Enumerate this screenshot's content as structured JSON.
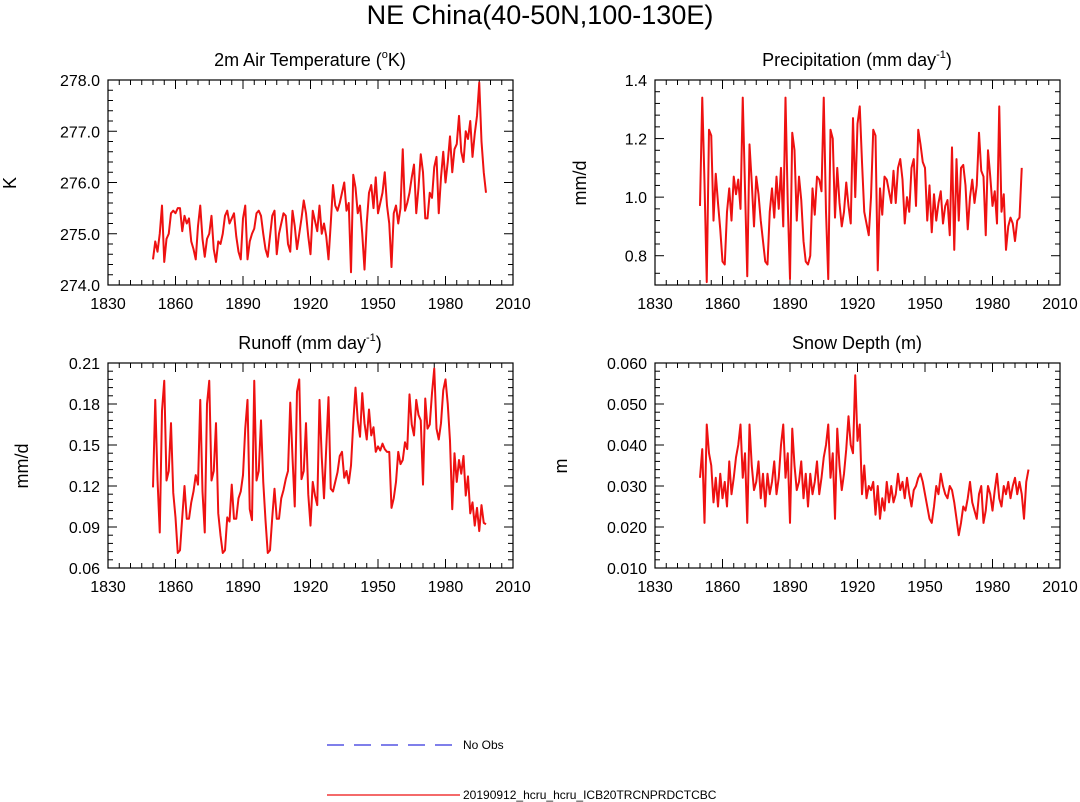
{
  "figure": {
    "title": "NE China(40-50N,100-130E)",
    "legend": [
      {
        "label": "No Obs",
        "color": "#3333dd",
        "style": "dashed"
      },
      {
        "label": "20190912_hcru_hcru_ICB20TRCNPRDCTCBC",
        "color": "#ee1111",
        "style": "solid"
      }
    ]
  },
  "chart_data": [
    {
      "type": "line",
      "title_prefix": "2m Air Temperature (",
      "title_sup": "o",
      "title_suffix": "K)",
      "ylabel": "K",
      "xlim": [
        1830,
        2010
      ],
      "ylim": [
        274.0,
        278.0
      ],
      "xticks": [
        1830,
        1860,
        1890,
        1920,
        1950,
        1980,
        2010
      ],
      "xtick_labels": [
        "1830",
        "1860",
        "1890",
        "1920",
        "1950",
        "1980",
        "2010"
      ],
      "yticks": [
        274.0,
        275.0,
        276.0,
        277.0,
        278.0
      ],
      "ytick_labels": [
        "274.0",
        "275.0",
        "276.0",
        "277.0",
        "278.0"
      ],
      "series": [
        {
          "name": "20190912_hcru_hcru_ICB20TRCNPRDCTCBC",
          "color": "#ee1111",
          "x_start": 1850,
          "values": [
            274.5,
            274.85,
            274.65,
            275.0,
            275.55,
            274.45,
            274.9,
            275.0,
            275.4,
            275.45,
            275.4,
            275.5,
            275.5,
            275.05,
            275.35,
            275.2,
            275.3,
            274.85,
            274.7,
            274.5,
            275.15,
            275.55,
            274.9,
            274.55,
            274.9,
            275.0,
            275.35,
            274.7,
            274.45,
            274.85,
            274.8,
            275.0,
            275.35,
            275.45,
            275.2,
            275.3,
            275.4,
            274.95,
            274.65,
            274.5,
            275.3,
            275.55,
            274.5,
            274.85,
            275.0,
            275.1,
            275.4,
            275.45,
            275.35,
            275.0,
            274.7,
            274.55,
            274.95,
            275.35,
            275.45,
            274.6,
            275.0,
            275.2,
            275.4,
            275.35,
            274.8,
            274.65,
            275.45,
            275.15,
            274.7,
            275.0,
            275.3,
            275.65,
            275.4,
            274.95,
            274.6,
            275.45,
            275.25,
            275.05,
            275.55,
            275.0,
            275.2,
            274.95,
            274.5,
            275.2,
            275.95,
            275.55,
            275.45,
            275.6,
            275.8,
            276.0,
            275.45,
            275.6,
            274.25,
            276.15,
            275.9,
            275.4,
            275.55,
            275.0,
            274.3,
            275.2,
            275.8,
            275.95,
            275.5,
            276.1,
            275.4,
            275.6,
            275.8,
            276.2,
            275.55,
            275.2,
            274.35,
            275.4,
            275.55,
            275.2,
            275.5,
            276.65,
            275.45,
            275.6,
            275.8,
            276.1,
            276.35,
            275.4,
            275.9,
            276.55,
            276.2,
            275.3,
            275.3,
            275.8,
            275.7,
            276.3,
            276.5,
            275.4,
            276.1,
            276.6,
            276.0,
            276.4,
            276.9,
            276.2,
            276.65,
            276.75,
            277.3,
            276.6,
            276.4,
            277.0,
            276.85,
            277.2,
            276.5,
            276.95,
            277.3,
            277.95,
            276.8,
            276.2,
            275.8
          ]
        }
      ]
    },
    {
      "type": "line",
      "title_prefix": "Precipitation (mm day",
      "title_sup": "-1",
      "title_suffix": ")",
      "ylabel": "mm/d",
      "xlim": [
        1830,
        2010
      ],
      "ylim": [
        0.7,
        1.4
      ],
      "xticks": [
        1830,
        1860,
        1890,
        1920,
        1950,
        1980,
        2010
      ],
      "xtick_labels": [
        "1830",
        "1860",
        "1890",
        "1920",
        "1950",
        "1980",
        "2010"
      ],
      "yticks": [
        0.8,
        1.0,
        1.2,
        1.4
      ],
      "ytick_labels": [
        "0.8",
        "1.0",
        "1.2",
        "1.4"
      ],
      "series": [
        {
          "name": "20190912_hcru_hcru_ICB20TRCNPRDCTCBC",
          "color": "#ee1111",
          "x_start": 1850,
          "values": [
            0.97,
            1.34,
            1.05,
            0.71,
            1.23,
            1.21,
            0.92,
            1.08,
            0.98,
            0.89,
            0.78,
            0.77,
            0.95,
            1.03,
            0.92,
            1.07,
            1.01,
            1.06,
            0.96,
            1.34,
            1.03,
            0.73,
            1.18,
            1.05,
            0.9,
            1.07,
            1.01,
            0.92,
            0.85,
            0.78,
            0.77,
            0.95,
            1.03,
            0.93,
            1.07,
            0.96,
            1.1,
            0.9,
            1.34,
            0.98,
            0.72,
            1.22,
            1.16,
            0.92,
            1.07,
            0.99,
            0.85,
            0.78,
            0.77,
            0.8,
            1.03,
            0.94,
            1.07,
            1.06,
            1.02,
            1.34,
            0.95,
            0.72,
            1.23,
            1.2,
            0.93,
            1.1,
            0.98,
            0.9,
            0.95,
            1.05,
            0.97,
            0.91,
            1.27,
            1.0,
            1.25,
            1.31,
            1.12,
            0.95,
            0.91,
            0.87,
            1.0,
            1.23,
            1.21,
            0.75,
            1.03,
            0.94,
            1.07,
            1.06,
            1.02,
            0.98,
            1.09,
            0.98,
            1.1,
            1.13,
            1.06,
            0.91,
            1.0,
            0.95,
            1.1,
            1.13,
            0.97,
            1.23,
            1.18,
            1.12,
            1.1,
            0.92,
            1.04,
            0.88,
            1.01,
            0.92,
            0.98,
            1.02,
            0.91,
            0.97,
            0.99,
            0.87,
            1.17,
            0.82,
            1.13,
            0.92,
            1.1,
            1.11,
            1.04,
            0.89,
            1.0,
            1.06,
            0.98,
            1.04,
            1.22,
            1.09,
            1.07,
            0.87,
            1.16,
            1.07,
            0.97,
            1.02,
            0.91,
            1.31,
            0.95,
            1.01,
            0.82,
            0.9,
            0.93,
            0.91,
            0.85,
            0.92,
            0.93,
            1.1
          ]
        }
      ]
    },
    {
      "type": "line",
      "title_prefix": "Runoff (mm day",
      "title_sup": "-1",
      "title_suffix": ")",
      "ylabel": "mm/d",
      "xlim": [
        1830,
        2010
      ],
      "ylim": [
        0.06,
        0.21
      ],
      "xticks": [
        1830,
        1860,
        1890,
        1920,
        1950,
        1980,
        2010
      ],
      "xtick_labels": [
        "1830",
        "1860",
        "1890",
        "1920",
        "1950",
        "1980",
        "2010"
      ],
      "yticks": [
        0.06,
        0.09,
        0.12,
        0.15,
        0.18,
        0.21
      ],
      "ytick_labels": [
        "0.06",
        "0.09",
        "0.12",
        "0.15",
        "0.18",
        "0.21"
      ],
      "series": [
        {
          "name": "20190912_hcru_hcru_ICB20TRCNPRDCTCBC",
          "color": "#ee1111",
          "x_start": 1850,
          "values": [
            0.119,
            0.183,
            0.125,
            0.086,
            0.175,
            0.197,
            0.124,
            0.131,
            0.166,
            0.115,
            0.097,
            0.071,
            0.073,
            0.097,
            0.12,
            0.096,
            0.096,
            0.108,
            0.116,
            0.128,
            0.121,
            0.183,
            0.116,
            0.086,
            0.18,
            0.197,
            0.124,
            0.131,
            0.166,
            0.1,
            0.084,
            0.071,
            0.073,
            0.097,
            0.094,
            0.121,
            0.096,
            0.096,
            0.111,
            0.116,
            0.128,
            0.162,
            0.183,
            0.103,
            0.095,
            0.197,
            0.124,
            0.131,
            0.168,
            0.123,
            0.095,
            0.071,
            0.073,
            0.097,
            0.118,
            0.096,
            0.096,
            0.111,
            0.117,
            0.125,
            0.131,
            0.181,
            0.141,
            0.105,
            0.189,
            0.198,
            0.125,
            0.131,
            0.166,
            0.114,
            0.091,
            0.123,
            0.113,
            0.106,
            0.183,
            0.141,
            0.111,
            0.148,
            0.185,
            0.118,
            0.116,
            0.123,
            0.13,
            0.142,
            0.145,
            0.126,
            0.131,
            0.122,
            0.135,
            0.166,
            0.192,
            0.168,
            0.156,
            0.188,
            0.166,
            0.154,
            0.176,
            0.157,
            0.163,
            0.145,
            0.149,
            0.146,
            0.151,
            0.147,
            0.145,
            0.145,
            0.104,
            0.111,
            0.123,
            0.145,
            0.136,
            0.139,
            0.152,
            0.147,
            0.187,
            0.165,
            0.157,
            0.183,
            0.172,
            0.168,
            0.121,
            0.184,
            0.162,
            0.165,
            0.188,
            0.206,
            0.162,
            0.154,
            0.166,
            0.19,
            0.198,
            0.18,
            0.153,
            0.103,
            0.144,
            0.123,
            0.139,
            0.129,
            0.142,
            0.113,
            0.127,
            0.1,
            0.108,
            0.091,
            0.104,
            0.087,
            0.106,
            0.093,
            0.092
          ]
        }
      ]
    },
    {
      "type": "line",
      "title_prefix": "Snow Depth (m)",
      "title_sup": "",
      "title_suffix": "",
      "ylabel": "m",
      "xlim": [
        1830,
        2010
      ],
      "ylim": [
        0.01,
        0.06
      ],
      "xticks": [
        1830,
        1860,
        1890,
        1920,
        1950,
        1980,
        2010
      ],
      "xtick_labels": [
        "1830",
        "1860",
        "1890",
        "1920",
        "1950",
        "1980",
        "2010"
      ],
      "yticks": [
        0.01,
        0.02,
        0.03,
        0.04,
        0.05,
        0.06
      ],
      "ytick_labels": [
        "0.010",
        "0.020",
        "0.030",
        "0.040",
        "0.050",
        "0.060"
      ],
      "series": [
        {
          "name": "20190912_hcru_hcru_ICB20TRCNPRDCTCBC",
          "color": "#ee1111",
          "x_start": 1850,
          "values": [
            0.032,
            0.039,
            0.021,
            0.045,
            0.038,
            0.035,
            0.026,
            0.032,
            0.025,
            0.033,
            0.027,
            0.031,
            0.025,
            0.036,
            0.028,
            0.032,
            0.037,
            0.04,
            0.045,
            0.032,
            0.038,
            0.021,
            0.045,
            0.035,
            0.029,
            0.031,
            0.036,
            0.027,
            0.033,
            0.025,
            0.033,
            0.028,
            0.031,
            0.036,
            0.028,
            0.032,
            0.04,
            0.045,
            0.032,
            0.038,
            0.021,
            0.044,
            0.035,
            0.029,
            0.031,
            0.036,
            0.027,
            0.033,
            0.025,
            0.033,
            0.028,
            0.031,
            0.036,
            0.028,
            0.032,
            0.037,
            0.04,
            0.045,
            0.032,
            0.038,
            0.022,
            0.044,
            0.035,
            0.029,
            0.033,
            0.039,
            0.047,
            0.04,
            0.038,
            0.057,
            0.041,
            0.045,
            0.028,
            0.035,
            0.027,
            0.03,
            0.029,
            0.031,
            0.023,
            0.03,
            0.022,
            0.027,
            0.024,
            0.031,
            0.026,
            0.03,
            0.026,
            0.028,
            0.033,
            0.029,
            0.031,
            0.027,
            0.032,
            0.028,
            0.025,
            0.029,
            0.03,
            0.032,
            0.033,
            0.031,
            0.028,
            0.025,
            0.022,
            0.021,
            0.025,
            0.03,
            0.028,
            0.033,
            0.03,
            0.028,
            0.027,
            0.03,
            0.029,
            0.026,
            0.022,
            0.018,
            0.021,
            0.025,
            0.024,
            0.027,
            0.031,
            0.026,
            0.024,
            0.022,
            0.028,
            0.03,
            0.021,
            0.024,
            0.03,
            0.028,
            0.024,
            0.029,
            0.033,
            0.027,
            0.025,
            0.03,
            0.028,
            0.031,
            0.027,
            0.03,
            0.032,
            0.028,
            0.031,
            0.028,
            0.022,
            0.031,
            0.034
          ]
        }
      ]
    }
  ]
}
